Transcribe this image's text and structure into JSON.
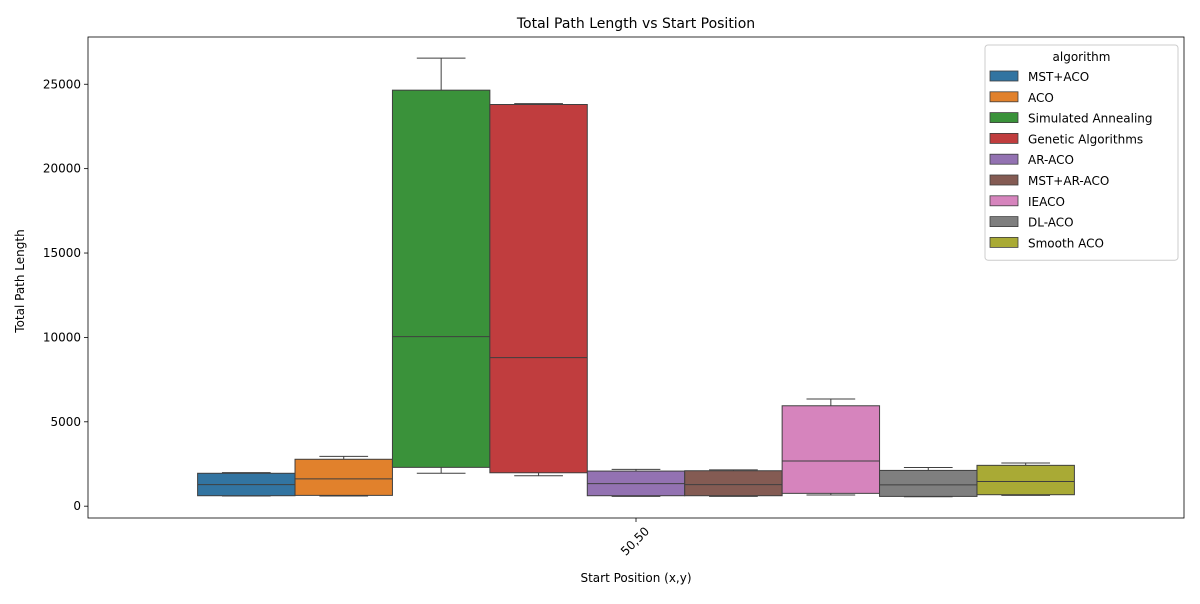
{
  "chart_data": {
    "type": "box",
    "title": "Total Path Length vs Start Position",
    "xlabel": "Start Position (x,y)",
    "ylabel": "Total Path Length",
    "categories": [
      "50,50"
    ],
    "ylim": [
      -700,
      27800
    ],
    "yticks": [
      0,
      5000,
      10000,
      15000,
      20000,
      25000
    ],
    "grid": false,
    "legend": {
      "title": "algorithm",
      "placement": "top-right"
    },
    "series": [
      {
        "name": "MST+ACO",
        "color": "#3274a1",
        "whisker_low": 600,
        "q1": 620,
        "median": 1280,
        "q3": 1950,
        "whisker_high": 1990
      },
      {
        "name": "ACO",
        "color": "#e1812c",
        "whisker_low": 600,
        "q1": 640,
        "median": 1620,
        "q3": 2780,
        "whisker_high": 2950
      },
      {
        "name": "Simulated Annealing",
        "color": "#3a923a",
        "whisker_low": 1950,
        "q1": 2300,
        "median": 10050,
        "q3": 24650,
        "whisker_high": 26550
      },
      {
        "name": "Genetic Algorithms",
        "color": "#c03d3e",
        "whisker_low": 1800,
        "q1": 1980,
        "median": 8800,
        "q3": 23800,
        "whisker_high": 23850
      },
      {
        "name": "AR-ACO",
        "color": "#9372b2",
        "whisker_low": 580,
        "q1": 620,
        "median": 1340,
        "q3": 2080,
        "whisker_high": 2180
      },
      {
        "name": "MST+AR-ACO",
        "color": "#845b53",
        "whisker_low": 580,
        "q1": 620,
        "median": 1280,
        "q3": 2100,
        "whisker_high": 2150
      },
      {
        "name": "IEACO",
        "color": "#d684bd",
        "whisker_low": 660,
        "q1": 760,
        "median": 2680,
        "q3": 5950,
        "whisker_high": 6350
      },
      {
        "name": "DL-ACO",
        "color": "#7f7f7f",
        "whisker_low": 560,
        "q1": 580,
        "median": 1260,
        "q3": 2120,
        "whisker_high": 2290
      },
      {
        "name": "Smooth ACO",
        "color": "#a9aa35",
        "whisker_low": 640,
        "q1": 680,
        "median": 1460,
        "q3": 2420,
        "whisker_high": 2560
      }
    ]
  }
}
